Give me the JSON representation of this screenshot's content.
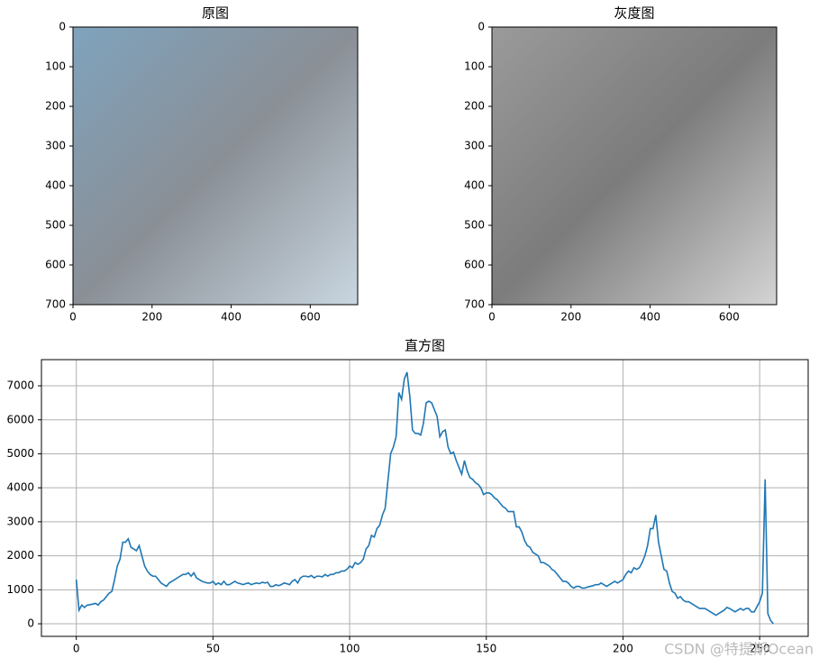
{
  "chart_data": [
    {
      "type": "image",
      "title": "原图",
      "xlim": [
        0,
        720
      ],
      "ylim": [
        700,
        0
      ],
      "xticks": [
        0,
        200,
        400,
        600
      ],
      "yticks": [
        0,
        100,
        200,
        300,
        400,
        500,
        600,
        700
      ]
    },
    {
      "type": "image",
      "title": "灰度图",
      "xlim": [
        0,
        720
      ],
      "ylim": [
        700,
        0
      ],
      "xticks": [
        0,
        200,
        400,
        600
      ],
      "yticks": [
        0,
        100,
        200,
        300,
        400,
        500,
        600,
        700
      ]
    },
    {
      "type": "line",
      "title": "直方图",
      "grid": true,
      "xlim": [
        -12.75,
        267.75
      ],
      "ylim": [
        -370,
        7770
      ],
      "xticks": [
        0,
        50,
        100,
        150,
        200,
        250
      ],
      "yticks": [
        0,
        1000,
        2000,
        3000,
        4000,
        5000,
        6000,
        7000
      ],
      "x": [
        0,
        1,
        2,
        3,
        4,
        5,
        6,
        7,
        8,
        9,
        10,
        11,
        12,
        13,
        14,
        15,
        16,
        17,
        18,
        19,
        20,
        21,
        22,
        23,
        24,
        25,
        26,
        27,
        28,
        29,
        30,
        31,
        32,
        33,
        34,
        35,
        36,
        37,
        38,
        39,
        40,
        41,
        42,
        43,
        44,
        45,
        46,
        47,
        48,
        49,
        50,
        51,
        52,
        53,
        54,
        55,
        56,
        57,
        58,
        59,
        60,
        61,
        62,
        63,
        64,
        65,
        66,
        67,
        68,
        69,
        70,
        71,
        72,
        73,
        74,
        75,
        76,
        77,
        78,
        79,
        80,
        81,
        82,
        83,
        84,
        85,
        86,
        87,
        88,
        89,
        90,
        91,
        92,
        93,
        94,
        95,
        96,
        97,
        98,
        99,
        100,
        101,
        102,
        103,
        104,
        105,
        106,
        107,
        108,
        109,
        110,
        111,
        112,
        113,
        114,
        115,
        116,
        117,
        118,
        119,
        120,
        121,
        122,
        123,
        124,
        125,
        126,
        127,
        128,
        129,
        130,
        131,
        132,
        133,
        134,
        135,
        136,
        137,
        138,
        139,
        140,
        141,
        142,
        143,
        144,
        145,
        146,
        147,
        148,
        149,
        150,
        151,
        152,
        153,
        154,
        155,
        156,
        157,
        158,
        159,
        160,
        161,
        162,
        163,
        164,
        165,
        166,
        167,
        168,
        169,
        170,
        171,
        172,
        173,
        174,
        175,
        176,
        177,
        178,
        179,
        180,
        181,
        182,
        183,
        184,
        185,
        186,
        187,
        188,
        189,
        190,
        191,
        192,
        193,
        194,
        195,
        196,
        197,
        198,
        199,
        200,
        201,
        202,
        203,
        204,
        205,
        206,
        207,
        208,
        209,
        210,
        211,
        212,
        213,
        214,
        215,
        216,
        217,
        218,
        219,
        220,
        221,
        222,
        223,
        224,
        225,
        226,
        227,
        228,
        229,
        230,
        231,
        232,
        233,
        234,
        235,
        236,
        237,
        238,
        239,
        240,
        241,
        242,
        243,
        244,
        245,
        246,
        247,
        248,
        249,
        250,
        251,
        252,
        253,
        254,
        255
      ],
      "series": [
        {
          "color": "#1f77b4",
          "values": [
            1300,
            400,
            550,
            480,
            550,
            560,
            580,
            600,
            550,
            650,
            700,
            800,
            900,
            950,
            1300,
            1700,
            1900,
            2400,
            2400,
            2500,
            2250,
            2200,
            2150,
            2300,
            2000,
            1700,
            1550,
            1450,
            1400,
            1400,
            1300,
            1200,
            1150,
            1100,
            1200,
            1250,
            1300,
            1350,
            1400,
            1450,
            1450,
            1500,
            1400,
            1500,
            1350,
            1300,
            1250,
            1220,
            1200,
            1200,
            1250,
            1150,
            1200,
            1150,
            1250,
            1150,
            1150,
            1200,
            1250,
            1200,
            1180,
            1150,
            1180,
            1200,
            1150,
            1180,
            1200,
            1180,
            1220,
            1200,
            1220,
            1100,
            1100,
            1150,
            1120,
            1150,
            1200,
            1180,
            1150,
            1250,
            1300,
            1200,
            1350,
            1400,
            1400,
            1380,
            1420,
            1350,
            1400,
            1400,
            1380,
            1450,
            1400,
            1450,
            1450,
            1500,
            1500,
            1550,
            1550,
            1600,
            1700,
            1650,
            1800,
            1750,
            1800,
            1900,
            2200,
            2300,
            2600,
            2550,
            2800,
            2900,
            3200,
            3400,
            4200,
            5000,
            5200,
            5500,
            6800,
            6600,
            7200,
            7400,
            6700,
            5700,
            5600,
            5600,
            5550,
            5900,
            6500,
            6550,
            6500,
            6300,
            6100,
            5500,
            5650,
            5700,
            5200,
            5000,
            5050,
            4800,
            4600,
            4400,
            4800,
            4500,
            4300,
            4250,
            4150,
            4100,
            4000,
            3800,
            3850,
            3850,
            3800,
            3700,
            3650,
            3550,
            3450,
            3400,
            3300,
            3300,
            3300,
            2850,
            2850,
            2700,
            2450,
            2300,
            2250,
            2100,
            2050,
            2000,
            1800,
            1800,
            1750,
            1700,
            1600,
            1550,
            1450,
            1350,
            1250,
            1250,
            1200,
            1100,
            1050,
            1100,
            1100,
            1050,
            1050,
            1080,
            1100,
            1120,
            1150,
            1150,
            1200,
            1150,
            1100,
            1150,
            1200,
            1250,
            1200,
            1250,
            1300,
            1450,
            1550,
            1500,
            1650,
            1600,
            1650,
            1800,
            2000,
            2300,
            2800,
            2800,
            3200,
            2400,
            2000,
            1600,
            1550,
            1200,
            950,
            900,
            750,
            800,
            700,
            650,
            650,
            600,
            550,
            500,
            450,
            450,
            450,
            400,
            350,
            300,
            250,
            300,
            350,
            400,
            480,
            450,
            400,
            350,
            400,
            450,
            400,
            450,
            450,
            350,
            350,
            500,
            650,
            900,
            4250,
            300,
            100,
            0
          ]
        }
      ]
    }
  ],
  "watermark": "CSDN @特提斯Ocean"
}
